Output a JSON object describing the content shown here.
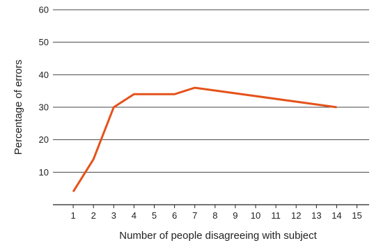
{
  "chart_data": {
    "type": "line",
    "title": "",
    "xlabel": "Number of people disagreeing with subject",
    "ylabel": "Percentage of errors",
    "x": [
      1,
      2,
      3,
      4,
      5,
      6,
      7,
      14
    ],
    "series": [
      {
        "values": [
          4,
          14,
          30,
          34,
          34,
          34,
          36,
          30
        ]
      }
    ],
    "xlim": [
      0,
      15.6
    ],
    "ylim": [
      0,
      60
    ],
    "xticks": [
      1,
      2,
      3,
      4,
      5,
      6,
      7,
      8,
      9,
      10,
      11,
      12,
      13,
      14,
      15
    ],
    "yticks": [
      10,
      20,
      30,
      40,
      50,
      60
    ],
    "grid": "horizontal",
    "line_color": "#e4521b"
  }
}
